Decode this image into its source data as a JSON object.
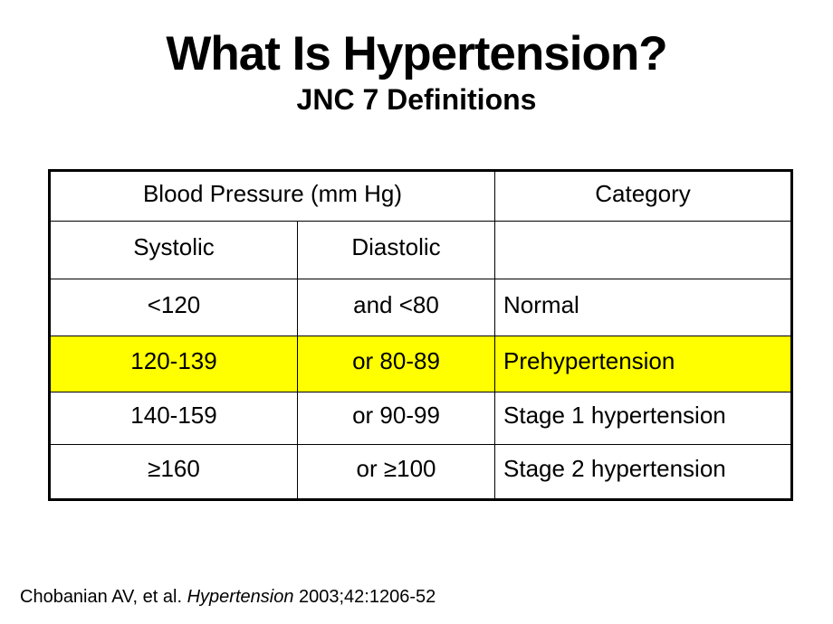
{
  "slide": {
    "title": "What Is Hypertension?",
    "subtitle": "JNC 7 Definitions",
    "background_color": "#FFFFFF",
    "text_color": "#000000"
  },
  "table": {
    "header": {
      "blood_pressure": "Blood Pressure (mm Hg)",
      "category": "Category",
      "systolic": "Systolic",
      "diastolic": "Diastolic"
    },
    "rows": [
      {
        "systolic": "<120",
        "diastolic": "and <80",
        "category": "Normal",
        "highlighted": false
      },
      {
        "systolic": "120-139",
        "diastolic": "or 80-89",
        "category": "Prehypertension",
        "highlighted": true
      },
      {
        "systolic": "140-159",
        "diastolic": "or 90-99",
        "category": "Stage 1 hypertension",
        "highlighted": false
      },
      {
        "systolic": "≥160",
        "diastolic": "or ≥100",
        "category": "Stage 2 hypertension",
        "highlighted": false
      }
    ],
    "highlight_color": "#FFFF00",
    "border_color": "#000000"
  },
  "footnote": {
    "prefix": "Chobanian AV, et al. ",
    "journal": "Hypertension",
    "suffix": " 2003;42:1206-52"
  }
}
